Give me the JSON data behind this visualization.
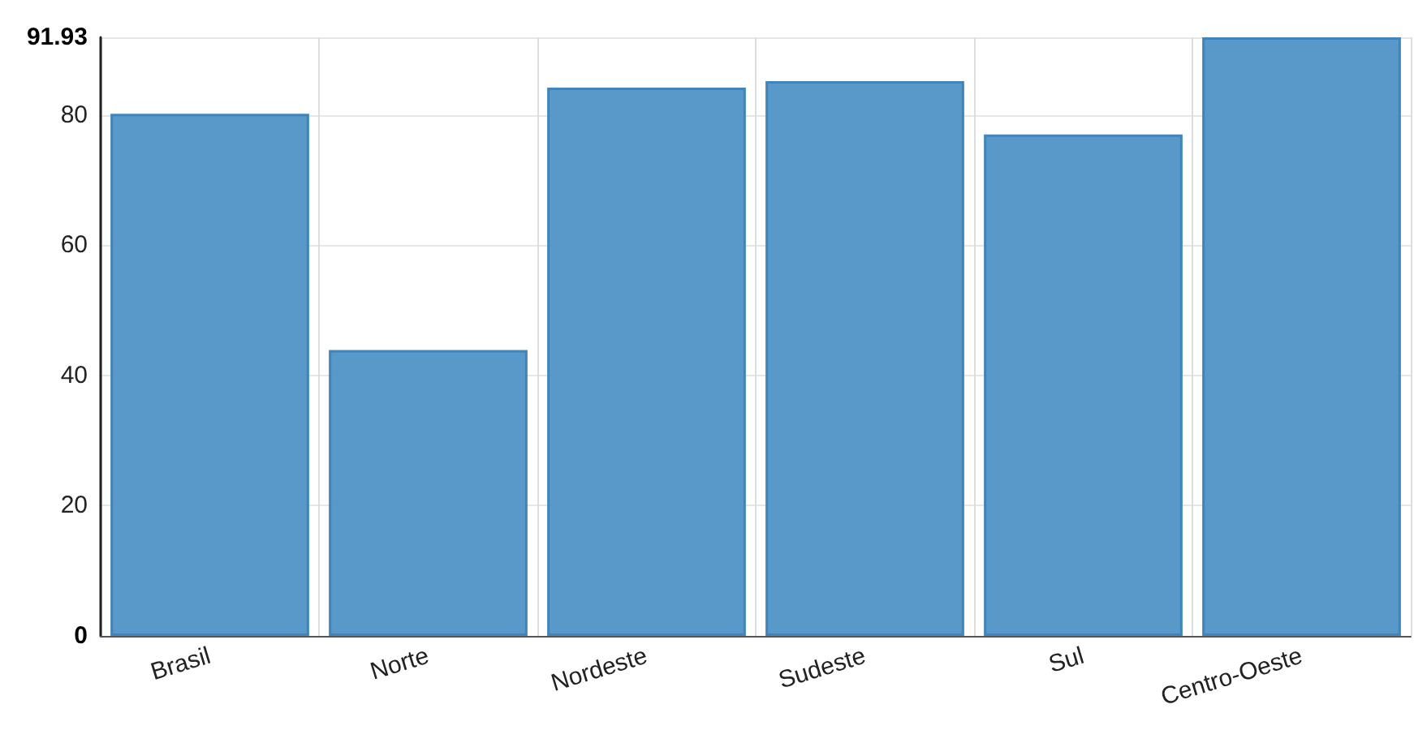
{
  "chart_data": {
    "type": "bar",
    "categories": [
      "Brasil",
      "Norte",
      "Nordeste",
      "Sudeste",
      "Sul",
      "Centro-Oeste"
    ],
    "values": [
      80.2,
      43.9,
      84.2,
      85.2,
      77.0,
      91.93
    ],
    "color": "#4f94c6",
    "ylim": [
      0,
      91.93
    ],
    "yticks": [
      0,
      20,
      40,
      60,
      80,
      91.93
    ],
    "grid": true
  }
}
